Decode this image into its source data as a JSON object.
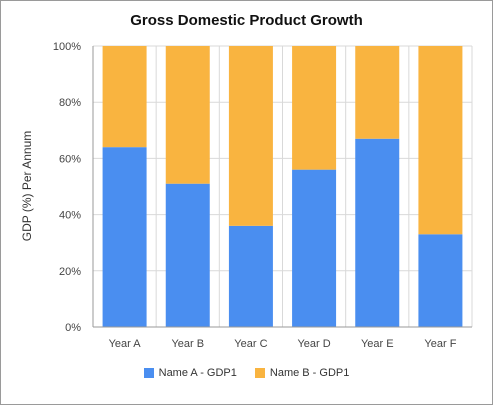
{
  "chart_data": {
    "type": "bar",
    "stacked": true,
    "title": "Gross Domestic Product Growth",
    "xlabel": "",
    "ylabel": "GDP (%) Per Annum",
    "ylim": [
      0,
      100
    ],
    "yticks": [
      "0%",
      "20%",
      "40%",
      "60%",
      "80%",
      "100%"
    ],
    "categories": [
      "Year A",
      "Year B",
      "Year C",
      "Year D",
      "Year E",
      "Year F"
    ],
    "series": [
      {
        "name": "Name A - GDP1",
        "color": "#4a8ef0",
        "values": [
          64,
          51,
          36,
          56,
          67,
          33
        ]
      },
      {
        "name": "Name B - GDP1",
        "color": "#f9b440",
        "values": [
          36,
          49,
          64,
          44,
          33,
          67
        ]
      }
    ],
    "grid": true,
    "legend_position": "bottom"
  }
}
